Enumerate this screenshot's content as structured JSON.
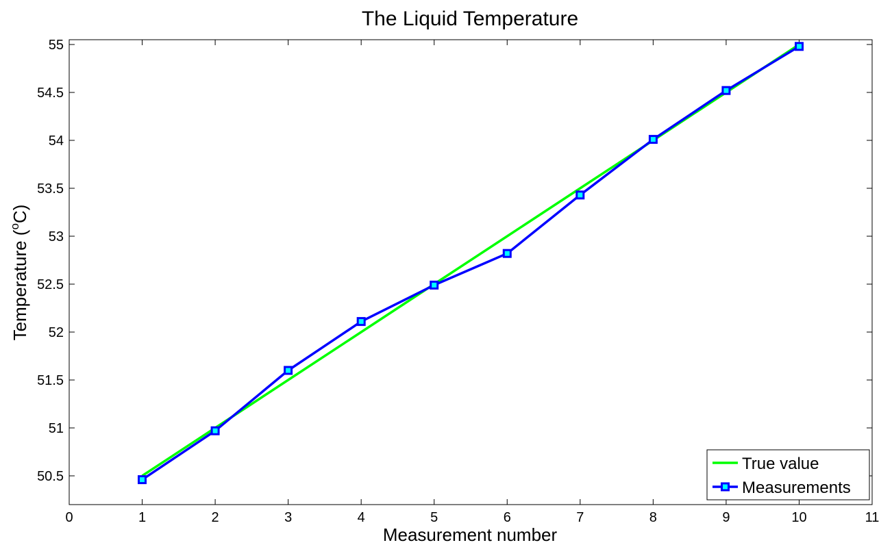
{
  "chart_data": {
    "type": "line",
    "title": "The Liquid  Temperature",
    "xlabel": "Measurement number",
    "ylabel": "Temperature (",
    "ylabel_superscript": "o",
    "ylabel_suffix": "C)",
    "xlim": [
      0,
      11
    ],
    "ylim": [
      50.2,
      55.05
    ],
    "x_ticks": [
      0,
      1,
      2,
      3,
      4,
      5,
      6,
      7,
      8,
      9,
      10,
      11
    ],
    "y_ticks": [
      50.5,
      51,
      51.5,
      52,
      52.5,
      53,
      53.5,
      54,
      54.5,
      55
    ],
    "grid": false,
    "legend_position": "bottom-right",
    "series": [
      {
        "name": "True value",
        "color": "#00ff00",
        "marker": "none",
        "x": [
          1,
          2,
          3,
          4,
          5,
          6,
          7,
          8,
          9,
          10
        ],
        "y": [
          50.5,
          51,
          51.5,
          52,
          52.5,
          53,
          53.5,
          54,
          54.5,
          55
        ]
      },
      {
        "name": "Measurements",
        "color": "#0000ff",
        "marker": "square",
        "marker_fill": "#00ffff",
        "x": [
          1,
          2,
          3,
          4,
          5,
          6,
          7,
          8,
          9,
          10
        ],
        "y": [
          50.46,
          50.97,
          51.6,
          52.11,
          52.49,
          52.82,
          53.43,
          54.01,
          54.52,
          54.98
        ]
      }
    ]
  }
}
